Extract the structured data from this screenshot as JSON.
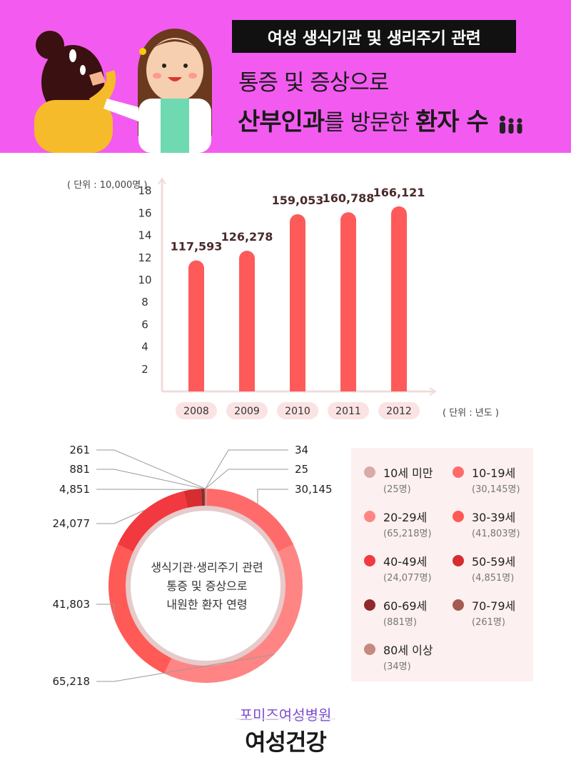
{
  "header": {
    "title_top": "여성 생식기관 및 생리주기 관련",
    "title_mid": "통증 및 증상으로",
    "title_bottom_bold": "산부인과",
    "title_bottom_rest": "를 방문한 ",
    "title_bottom_bold2": "환자 수",
    "colors": {
      "background": "#f35bf0",
      "title_box": "#111111"
    }
  },
  "chart_data": [
    {
      "type": "bar",
      "categories": [
        "2008",
        "2009",
        "2010",
        "2011",
        "2012"
      ],
      "values": [
        11.7593,
        12.6278,
        15.9053,
        16.0788,
        16.6121
      ],
      "data_labels": [
        "117,593",
        "126,278",
        "159,053",
        "160,788",
        "166,121"
      ],
      "ylabel": "( 단위 : 10,000명 )",
      "xlabel": "( 단위 : 년도 )",
      "yticks": [
        2,
        4,
        6,
        8,
        10,
        12,
        14,
        16,
        18
      ],
      "ylim": [
        0,
        18
      ],
      "bar_color": "#ff5a5a",
      "grid": false
    },
    {
      "type": "pie",
      "style": "donut",
      "center_text": [
        "생식기관·생리주기 관련",
        "통증 및 증상으로",
        "내원한 환자 연령"
      ],
      "slices": [
        {
          "name": "10세 미만",
          "count_label": "(25명)",
          "value": 25,
          "data_label": "25",
          "color": "#d9aaaa"
        },
        {
          "name": "10-19세",
          "count_label": "(30,145명)",
          "value": 30145,
          "data_label": "30,145",
          "color": "#ff6b6b"
        },
        {
          "name": "20-29세",
          "count_label": "(65,218명)",
          "value": 65218,
          "data_label": "65,218",
          "color": "#ff8585"
        },
        {
          "name": "30-39세",
          "count_label": "(41,803명)",
          "value": 41803,
          "data_label": "41,803",
          "color": "#ff5a56"
        },
        {
          "name": "40-49세",
          "count_label": "(24,077명)",
          "value": 24077,
          "data_label": "24,077",
          "color": "#f2393f"
        },
        {
          "name": "50-59세",
          "count_label": "(4,851명)",
          "value": 4851,
          "data_label": "4,851",
          "color": "#d62d30"
        },
        {
          "name": "60-69세",
          "count_label": "(881명)",
          "value": 881,
          "data_label": "881",
          "color": "#8e2a2a"
        },
        {
          "name": "70-79세",
          "count_label": "(261명)",
          "value": 261,
          "data_label": "261",
          "color": "#a45a50"
        },
        {
          "name": "80세 이상",
          "count_label": "(34명)",
          "value": 34,
          "data_label": "34",
          "color": "#c48a80"
        }
      ],
      "legend": "right"
    }
  ],
  "footer": {
    "sub": "포미즈여성병원",
    "main": "여성건강"
  }
}
